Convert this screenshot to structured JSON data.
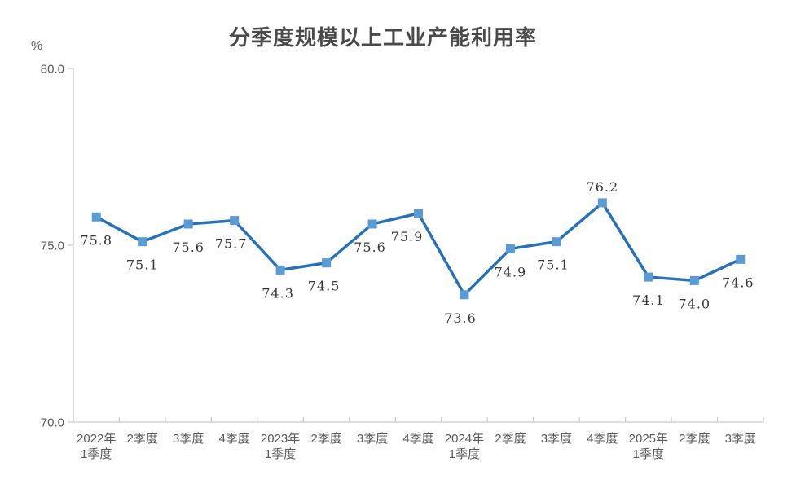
{
  "chart_data": {
    "type": "line",
    "title": "分季度规模以上工业产能利用率",
    "unit_label": "%",
    "categories": [
      "2022年\n1季度",
      "2季度",
      "3季度",
      "4季度",
      "2023年\n1季度",
      "2季度",
      "3季度",
      "4季度",
      "2024年\n1季度",
      "2季度",
      "3季度",
      "4季度",
      "2025年\n1季度",
      "2季度",
      "3季度"
    ],
    "values": [
      75.8,
      75.1,
      75.6,
      75.7,
      74.3,
      74.5,
      75.6,
      75.9,
      73.6,
      74.9,
      75.1,
      76.2,
      74.1,
      74.0,
      74.6
    ],
    "data_labels": [
      "75.8",
      "75.1",
      "75.6",
      "75.7",
      "74.3",
      "74.5",
      "75.6",
      "75.9",
      "73.6",
      "74.9",
      "75.1",
      "76.2",
      "74.1",
      "74.0",
      "74.6"
    ],
    "ylim": [
      70,
      80
    ],
    "ytick_values": [
      70,
      75,
      80
    ],
    "yticks": [
      "70.0",
      "75.0",
      "80.0"
    ],
    "xlabel": "",
    "ylabel": "%",
    "grid": false,
    "legend_position": "none",
    "label_offsets": {
      "dx": [
        0,
        0,
        0,
        -4,
        -3,
        -3,
        -3,
        -14,
        -5,
        0,
        -4,
        0,
        0,
        0,
        -3
      ],
      "dy": [
        34,
        34,
        34,
        34,
        34,
        34,
        34,
        34,
        34,
        34,
        34,
        -14,
        34,
        34,
        34
      ]
    }
  },
  "style": {
    "line_color": "#2671b8",
    "marker_color": "#5b9bd5",
    "axis_color": "#c9c9c9",
    "tick_label_color": "#595959",
    "data_label_color": "#383838",
    "title_color": "#4a4a4a",
    "background_color": "#ffffff"
  }
}
